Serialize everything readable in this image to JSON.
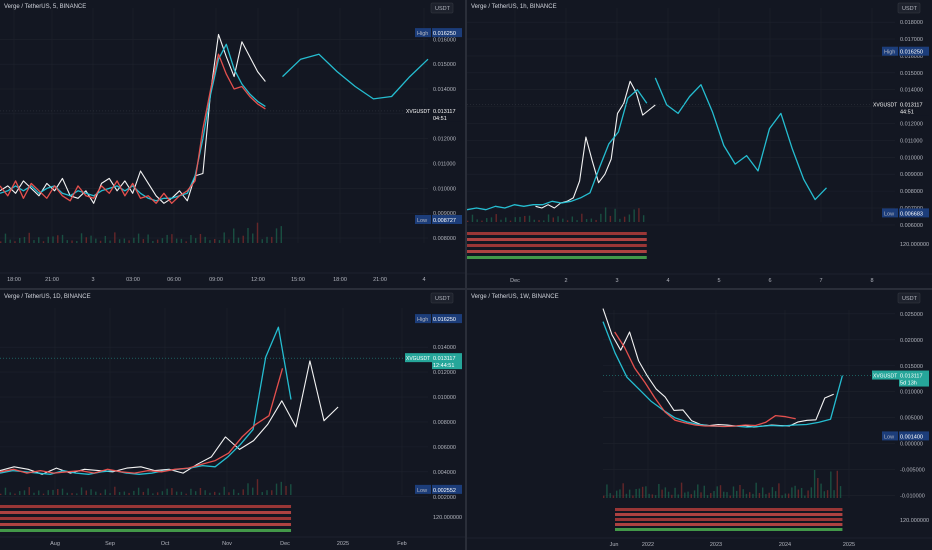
{
  "chart_data": [
    {
      "type": "line",
      "title": "Verge / TetherUS, 5, BINANCE",
      "currency": "USDT",
      "y_ticks": [
        "0.016000",
        "0.015000",
        "0.014000",
        "0.013000",
        "0.012000",
        "0.011000",
        "0.010000",
        "0.009000",
        "0.008000"
      ],
      "ylim": [
        0.0078,
        0.0171
      ],
      "x_ticks": [
        "18:00",
        "21:00",
        "3",
        "03:00",
        "06:00",
        "09:00",
        "12:00",
        "15:00",
        "18:00",
        "21:00",
        "4"
      ],
      "high": {
        "label": "High",
        "value": "0.016250"
      },
      "low": {
        "label": "Low",
        "value": "0.008727"
      },
      "last": {
        "symbol": "XVGUSDT",
        "value": "0.013117",
        "countdown": "04:51"
      },
      "series": [
        {
          "color": "#ffffff",
          "values": [
            0.0099,
            0.0101,
            0.0098,
            0.0103,
            0.01,
            0.0097,
            0.0102,
            0.0099,
            0.0104,
            0.0097,
            0.0096,
            0.0099,
            0.0094,
            0.0102,
            0.0104,
            0.0099,
            0.0103,
            0.0098,
            0.0107,
            0.0102,
            0.0097,
            0.0094,
            0.0096,
            0.0099,
            0.0095,
            0.0105,
            0.0106,
            0.0139,
            0.0162,
            0.0153,
            0.0145,
            0.0159,
            0.0153,
            0.0147,
            0.0143
          ]
        },
        {
          "color": "#26c6da",
          "values": [
            0.0098,
            0.0099,
            0.0101,
            0.0099,
            0.0101,
            0.0098,
            0.01,
            0.0101,
            0.0098,
            0.0097,
            0.0099,
            0.0098,
            0.0097,
            0.0099,
            0.01,
            0.0101,
            0.0099,
            0.0101,
            0.0098,
            0.0096,
            0.0095,
            0.0096,
            0.0096,
            0.0097,
            0.0098,
            0.0105,
            0.012,
            0.0138,
            0.0152,
            0.0158,
            0.0148,
            0.0142,
            0.0138,
            0.0135,
            0.0133
          ]
        },
        {
          "color": "#ef5350",
          "values": [
            0.0101,
            0.0097,
            0.0103,
            0.0096,
            0.0102,
            0.0099,
            0.0096,
            0.0101,
            0.0097,
            0.0095,
            0.0101,
            0.0097,
            0.0096,
            0.0101,
            0.0098,
            0.0103,
            0.0097,
            0.0102,
            0.0096,
            0.0097,
            0.0094,
            0.0098,
            0.0094,
            0.0097,
            0.0099,
            0.0103,
            0.0124,
            0.014,
            0.0154,
            0.0146,
            0.014,
            0.0141,
            0.0137,
            0.0134,
            0.0132
          ]
        },
        {
          "color": "#26c6da",
          "values": [
            0.0145,
            0.0152,
            0.0154,
            0.0147,
            0.0141,
            0.0136,
            0.0137,
            0.0145,
            0.0152
          ]
        }
      ]
    },
    {
      "type": "line",
      "title": "Verge / TetherUS, 1h, BINANCE",
      "currency": "USDT",
      "y_ticks": [
        "0.018000",
        "0.017000",
        "0.016000",
        "0.015000",
        "0.014000",
        "0.013000",
        "0.012000",
        "0.011000",
        "0.010000",
        "0.009000",
        "0.008000",
        "0.007000",
        "0.006000",
        "120.000000"
      ],
      "ylim": [
        0.0057,
        0.0186
      ],
      "x_ticks": [
        "Dec",
        "2",
        "3",
        "4",
        "5",
        "6",
        "7",
        "8"
      ],
      "high": {
        "label": "High",
        "value": "0.016250"
      },
      "low": {
        "label": "Low",
        "value": "0.006683"
      },
      "last": {
        "symbol": "XVGUSDT",
        "value": "0.013117",
        "countdown": "44:51"
      },
      "series": [
        {
          "color": "#ffffff",
          "values": [
            0.0071,
            0.007,
            0.0072,
            0.007,
            0.0073,
            0.0074,
            0.0076,
            0.0086,
            0.0112,
            0.0098,
            0.0085,
            0.009,
            0.0099,
            0.0126,
            0.0132,
            0.0145,
            0.0138,
            0.0125,
            0.0128,
            0.0131
          ]
        },
        {
          "color": "#26c6da",
          "values": [
            0.0069,
            0.007,
            0.0069,
            0.0071,
            0.007,
            0.0072,
            0.0071,
            0.0072,
            0.0072,
            0.0074,
            0.0073,
            0.0074,
            0.0076,
            0.0079,
            0.0094,
            0.0108,
            0.0115,
            0.0135,
            0.014,
            0.0132
          ]
        },
        {
          "color": "#26c6da",
          "values": [
            0.0147,
            0.0131,
            0.0126,
            0.0136,
            0.0143,
            0.0127,
            0.0107,
            0.0096,
            0.0101,
            0.0092,
            0.0117,
            0.0126,
            0.0105,
            0.0087,
            0.0075,
            0.0082
          ]
        }
      ]
    },
    {
      "type": "line",
      "title": "Verge / TetherUS, 1D, BINANCE",
      "currency": "USDT",
      "y_ticks": [
        "0.014000",
        "0.012000",
        "0.010000",
        "0.008000",
        "0.006000",
        "0.004000",
        "0.002000",
        "120.000000"
      ],
      "ylim": [
        0.0019,
        0.0173
      ],
      "x_ticks": [
        "Aug",
        "Sep",
        "Oct",
        "Nov",
        "Dec",
        "2025",
        "Feb"
      ],
      "high": {
        "label": "High",
        "value": "0.016250"
      },
      "low": {
        "label": "Low",
        "value": "0.002552"
      },
      "last": {
        "symbol": "XVGUSDT",
        "value": "0.013117",
        "countdown": "12:44:51"
      },
      "series": [
        {
          "color": "#ffffff",
          "values": [
            0.0041,
            0.0044,
            0.0042,
            0.0038,
            0.0043,
            0.0039,
            0.0042,
            0.0041,
            0.004,
            0.0043,
            0.0044,
            0.0041,
            0.0042,
            0.0039,
            0.0046,
            0.0052,
            0.0068,
            0.0058,
            0.0065,
            0.0078,
            0.0097,
            0.0076,
            0.0129,
            0.0081,
            0.0092
          ]
        },
        {
          "color": "#26c6da",
          "values": [
            0.0039,
            0.0041,
            0.004,
            0.0039,
            0.0038,
            0.0041,
            0.0039,
            0.0038,
            0.004,
            0.0041,
            0.0039,
            0.0038,
            0.0039,
            0.0041,
            0.0042,
            0.0043,
            0.0045,
            0.0044,
            0.0052,
            0.0062,
            0.0074,
            0.0132,
            0.0156,
            0.0098
          ]
        },
        {
          "color": "#ef5350",
          "values": [
            0.004,
            0.0042,
            0.0039,
            0.0041,
            0.0039,
            0.004,
            0.0041,
            0.0039,
            0.0042,
            0.004,
            0.0039,
            0.0041,
            0.004,
            0.0042,
            0.0043,
            0.0046,
            0.0049,
            0.0055,
            0.0068,
            0.0078,
            0.0085,
            0.0123
          ]
        }
      ]
    },
    {
      "type": "line",
      "title": "Verge / TetherUS, 1W, BINANCE",
      "currency": "USDT",
      "y_ticks": [
        "0.025000",
        "0.020000",
        "0.015000",
        "0.010000",
        "0.005000",
        "0.000000",
        "-0.005000",
        "-0.010000",
        "120.000000"
      ],
      "ylim": [
        -0.0118,
        0.0265
      ],
      "x_ticks": [
        "Jun",
        "2022",
        "2023",
        "2024",
        "2025"
      ],
      "high": {
        "label": "High",
        "value": ""
      },
      "low": {
        "label": "Low",
        "value": "0.001400"
      },
      "last": {
        "symbol": "XVGUSDT",
        "value": "0.013117",
        "countdown": "5d 13h"
      },
      "series": [
        {
          "color": "#ffffff",
          "values": [
            0.026,
            0.021,
            0.018,
            0.0215,
            0.016,
            0.013,
            0.0105,
            0.009,
            0.0064,
            0.0065,
            0.0044,
            0.0037,
            0.0035,
            0.0037,
            0.0036,
            0.0034,
            0.0035,
            0.0032,
            0.0034,
            0.0036,
            0.0035,
            0.0034,
            0.0042,
            0.0045,
            0.0046,
            0.0088,
            0.0095
          ]
        },
        {
          "color": "#26c6da",
          "values": [
            0.0235,
            0.0175,
            0.0128,
            0.0105,
            0.0082,
            0.0065,
            0.005,
            0.0042,
            0.0037,
            0.0034,
            0.0033,
            0.0034,
            0.0032,
            0.0033,
            0.0035,
            0.0034,
            0.0036,
            0.0037,
            0.0041,
            0.0047,
            0.0131
          ]
        },
        {
          "color": "#ef5350",
          "values": [
            0.0215,
            0.0185,
            0.0145,
            0.0118,
            0.0088,
            0.0061,
            0.0045,
            0.004,
            0.0036,
            0.0034,
            0.0034,
            0.0033,
            0.0034,
            0.0036,
            0.0035,
            0.0041,
            0.0054,
            0.0052,
            0.0048
          ]
        }
      ]
    }
  ]
}
